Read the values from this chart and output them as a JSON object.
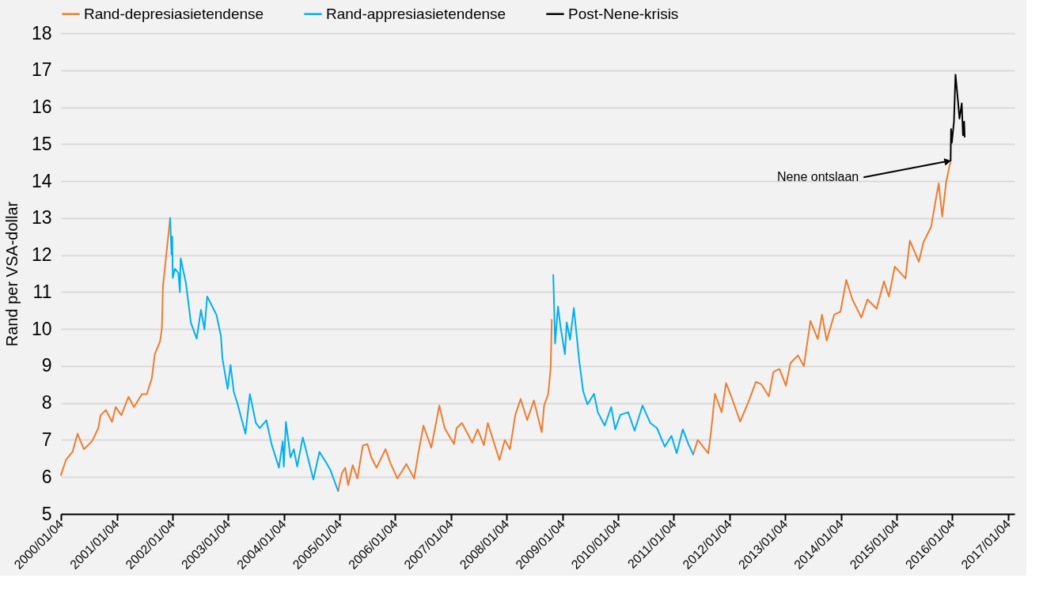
{
  "chart_data": {
    "type": "line",
    "ylabel": "Rand per VSA-dollar",
    "xlim": [
      "2000-01-04",
      "2017-02-15"
    ],
    "ylim": [
      5,
      18
    ],
    "yticks": [
      5,
      6,
      7,
      8,
      9,
      10,
      11,
      12,
      13,
      14,
      15,
      16,
      17,
      18
    ],
    "xticks": [
      {
        "value": "2000-01-04",
        "label": "2000/01/04"
      },
      {
        "value": "2001-01-04",
        "label": "2001/01/04"
      },
      {
        "value": "2002-01-04",
        "label": "2002/01/04"
      },
      {
        "value": "2003-01-04",
        "label": "2003/01/04"
      },
      {
        "value": "2004-01-04",
        "label": "2004/01/04"
      },
      {
        "value": "2005-01-04",
        "label": "2005/01/04"
      },
      {
        "value": "2006-01-04",
        "label": "2006/01/04"
      },
      {
        "value": "2007-01-04",
        "label": "2007/01/04"
      },
      {
        "value": "2008-01-04",
        "label": "2008/01/04"
      },
      {
        "value": "2009-01-04",
        "label": "2009/01/04"
      },
      {
        "value": "2010-01-04",
        "label": "2010/01/04"
      },
      {
        "value": "2011-01-04",
        "label": "2011/01/04"
      },
      {
        "value": "2012-01-04",
        "label": "2012/01/04"
      },
      {
        "value": "2013-01-04",
        "label": "2013/01/04"
      },
      {
        "value": "2014-01-04",
        "label": "2014/01/04"
      },
      {
        "value": "2015-01-04",
        "label": "2015/01/04"
      },
      {
        "value": "2016-01-04",
        "label": "2016/01/04"
      },
      {
        "value": "2017-01-04",
        "label": "2017/01/04"
      }
    ],
    "grid": "y",
    "legend": "top",
    "marker": "none",
    "line_style": "solid",
    "series": [
      {
        "name": "Rand-depresiasietendense",
        "color": "#ed7d31",
        "x": [
          "2000-01-04",
          "2000-02-06",
          "2000-03-20",
          "2000-04-22",
          "2000-06-03",
          "2000-07-25",
          "2000-09-05",
          "2000-09-20",
          "2000-10-25",
          "2000-12-04",
          "2000-12-28",
          "2001-02-03",
          "2001-03-22",
          "2001-04-27",
          "2001-06-18",
          "2001-07-20",
          "2001-08-22",
          "2001-09-10",
          "2001-10-15",
          "2001-10-27",
          "2001-11-03",
          "2001-12-20",
          "2003-06-01",
          "2004-12-25",
          "2005-01-19",
          "2005-02-10",
          "2005-03-01",
          "2005-03-31",
          "2005-05-01",
          "2005-06-05",
          "2005-07-05",
          "2005-07-31",
          "2005-09-03",
          "2005-11-01",
          "2005-12-06",
          "2006-01-18",
          "2006-03-18",
          "2006-05-08",
          "2006-06-03",
          "2006-07-08",
          "2006-08-28",
          "2006-10-20",
          "2006-11-24",
          "2007-01-24",
          "2007-02-10",
          "2007-03-17",
          "2007-05-24",
          "2007-06-28",
          "2007-08-08",
          "2007-09-03",
          "2007-10-16",
          "2007-11-18",
          "2007-12-23",
          "2008-01-26",
          "2008-03-01",
          "2008-04-05",
          "2008-05-18",
          "2008-07-01",
          "2008-08-21",
          "2008-09-06",
          "2008-10-03",
          "2008-10-19",
          "2008-10-26",
          "2008-11-05",
          "2010-01-01",
          "2011-05-11",
          "2011-06-10",
          "2011-08-18",
          "2011-09-05",
          "2011-10-01",
          "2011-11-14",
          "2011-12-13",
          "2012-01-22",
          "2012-03-14",
          "2012-05-05",
          "2012-06-25",
          "2012-07-30",
          "2012-09-18",
          "2012-10-18",
          "2012-11-27",
          "2013-01-08",
          "2013-02-07",
          "2013-03-28",
          "2013-05-06",
          "2013-06-18",
          "2013-08-05",
          "2013-09-02",
          "2013-10-02",
          "2013-11-21",
          "2014-01-01",
          "2014-02-08",
          "2014-03-20",
          "2014-05-18",
          "2014-06-27",
          "2014-08-26",
          "2014-10-13",
          "2014-11-14",
          "2014-12-23",
          "2015-03-03",
          "2015-04-01",
          "2015-05-30",
          "2015-06-29",
          "2015-08-18",
          "2015-09-07",
          "2015-10-07",
          "2015-10-30",
          "2015-11-25",
          "2015-12-24"
        ],
        "values": [
          6.05,
          6.46,
          6.68,
          7.17,
          6.75,
          6.96,
          7.32,
          7.67,
          7.81,
          7.49,
          7.89,
          7.67,
          8.17,
          7.89,
          8.24,
          8.24,
          8.67,
          9.31,
          9.67,
          10.02,
          11.16,
          13.0,
          null,
          5.62,
          6.1,
          6.25,
          5.78,
          6.32,
          5.96,
          6.85,
          6.89,
          6.53,
          6.25,
          6.75,
          6.35,
          5.96,
          6.35,
          5.96,
          6.61,
          7.39,
          6.79,
          7.93,
          7.32,
          6.89,
          7.32,
          7.46,
          6.93,
          7.29,
          6.86,
          7.46,
          6.89,
          6.46,
          7.0,
          6.75,
          7.68,
          8.11,
          7.54,
          8.07,
          7.21,
          7.93,
          8.25,
          8.96,
          10.25,
          null,
          null,
          6.61,
          7.0,
          6.64,
          7.21,
          8.25,
          7.75,
          8.54,
          8.11,
          7.5,
          8.0,
          8.57,
          8.51,
          8.18,
          8.84,
          8.92,
          8.47,
          9.08,
          9.29,
          9.0,
          10.22,
          9.73,
          10.39,
          9.69,
          10.39,
          10.47,
          11.33,
          10.8,
          10.31,
          10.8,
          10.55,
          11.29,
          10.88,
          11.69,
          11.37,
          12.39,
          11.82,
          12.35,
          12.76,
          13.24,
          13.94,
          13.04,
          13.98,
          14.55
        ]
      },
      {
        "name": "Rand-appresiasietendense",
        "color": "#00b0f0",
        "x": [
          "2001-12-20",
          "2001-12-29",
          "2002-01-03",
          "2002-01-06",
          "2002-01-20",
          "2002-02-12",
          "2002-02-22",
          "2002-02-27",
          "2002-04-03",
          "2002-05-05",
          "2002-06-12",
          "2002-07-10",
          "2002-08-02",
          "2002-08-20",
          "2002-09-20",
          "2002-10-20",
          "2002-11-18",
          "2002-11-28",
          "2003-01-01",
          "2003-01-20",
          "2003-02-10",
          "2003-03-08",
          "2003-04-28",
          "2003-05-27",
          "2003-07-05",
          "2003-07-30",
          "2003-09-12",
          "2003-10-16",
          "2003-12-03",
          "2003-12-28",
          "2004-01-04",
          "2004-01-18",
          "2004-02-17",
          "2004-03-10",
          "2004-04-01",
          "2004-05-08",
          "2004-07-16",
          "2004-08-25",
          "2004-10-08",
          "2004-11-06",
          "2004-12-25",
          "2006-06-01",
          "2008-11-05",
          "2008-11-17",
          "2008-12-06",
          "2008-12-21",
          "2009-01-20",
          "2009-02-01",
          "2009-02-23",
          "2009-03-20",
          "2009-04-04",
          "2009-04-25",
          "2009-05-20",
          "2009-06-17",
          "2009-07-30",
          "2009-08-24",
          "2009-10-08",
          "2009-11-20",
          "2009-12-16",
          "2010-01-19",
          "2010-03-11",
          "2010-04-22",
          "2010-06-13",
          "2010-08-03",
          "2010-09-16",
          "2010-11-06",
          "2010-12-20",
          "2011-01-23",
          "2011-03-04",
          "2011-04-10",
          "2011-05-11"
        ],
        "values": [
          13.0,
          12.02,
          12.5,
          11.38,
          11.63,
          11.52,
          11.0,
          11.91,
          11.23,
          10.17,
          9.74,
          10.52,
          9.99,
          10.88,
          10.63,
          10.38,
          9.81,
          9.2,
          8.38,
          9.03,
          8.31,
          7.96,
          7.17,
          8.24,
          7.46,
          7.32,
          7.53,
          6.89,
          6.25,
          6.96,
          6.28,
          7.49,
          6.53,
          6.75,
          6.28,
          7.07,
          5.93,
          6.68,
          6.39,
          6.18,
          5.62,
          null,
          11.46,
          9.61,
          10.61,
          10.11,
          9.32,
          10.18,
          9.71,
          10.57,
          9.96,
          9.11,
          8.32,
          7.96,
          8.25,
          7.75,
          7.39,
          7.89,
          7.29,
          7.68,
          7.75,
          7.25,
          7.93,
          7.46,
          7.32,
          6.82,
          7.11,
          6.64,
          7.29,
          6.89,
          6.61
        ]
      },
      {
        "name": "Post-Nene-krisis",
        "color": "#000000",
        "x": [
          "2015-12-24",
          "2015-12-27",
          "2016-01-01",
          "2016-01-15",
          "2016-01-25",
          "2016-02-10",
          "2016-02-20",
          "2016-03-06",
          "2016-03-14",
          "2016-03-22",
          "2016-03-25"
        ],
        "values": [
          14.55,
          15.41,
          15.04,
          15.61,
          16.88,
          16.18,
          15.69,
          16.1,
          15.24,
          15.61,
          15.2
        ]
      }
    ],
    "annotations": [
      {
        "text": "Nene ontslaan",
        "x": "2015-12-24",
        "y": 14.55
      }
    ]
  }
}
